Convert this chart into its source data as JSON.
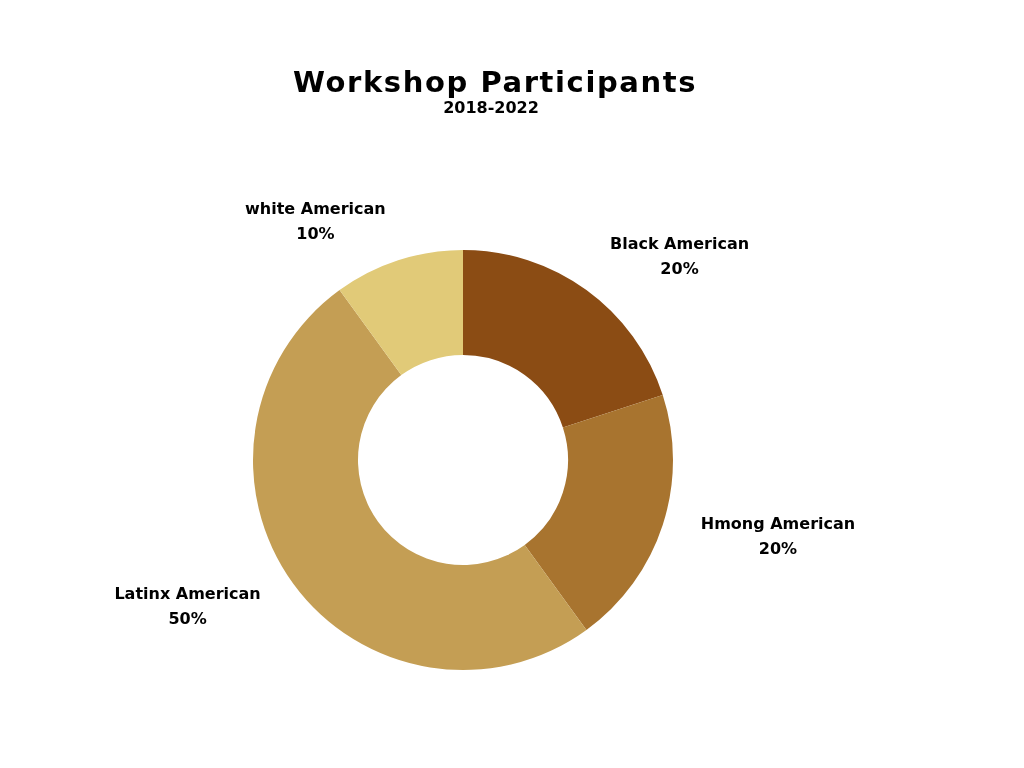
{
  "chart_data": {
    "type": "donut",
    "title": "Workshop Participants",
    "subtitle": "2018-2022",
    "categories": [
      "Black American",
      "Hmong American",
      "Latinx American",
      "white American"
    ],
    "values": [
      20,
      20,
      50,
      10
    ],
    "value_labels": [
      "20%",
      "20%",
      "50%",
      "10%"
    ],
    "colors": [
      "#8b4c14",
      "#a8742f",
      "#c49e54",
      "#e1ca78"
    ],
    "legend": false
  }
}
